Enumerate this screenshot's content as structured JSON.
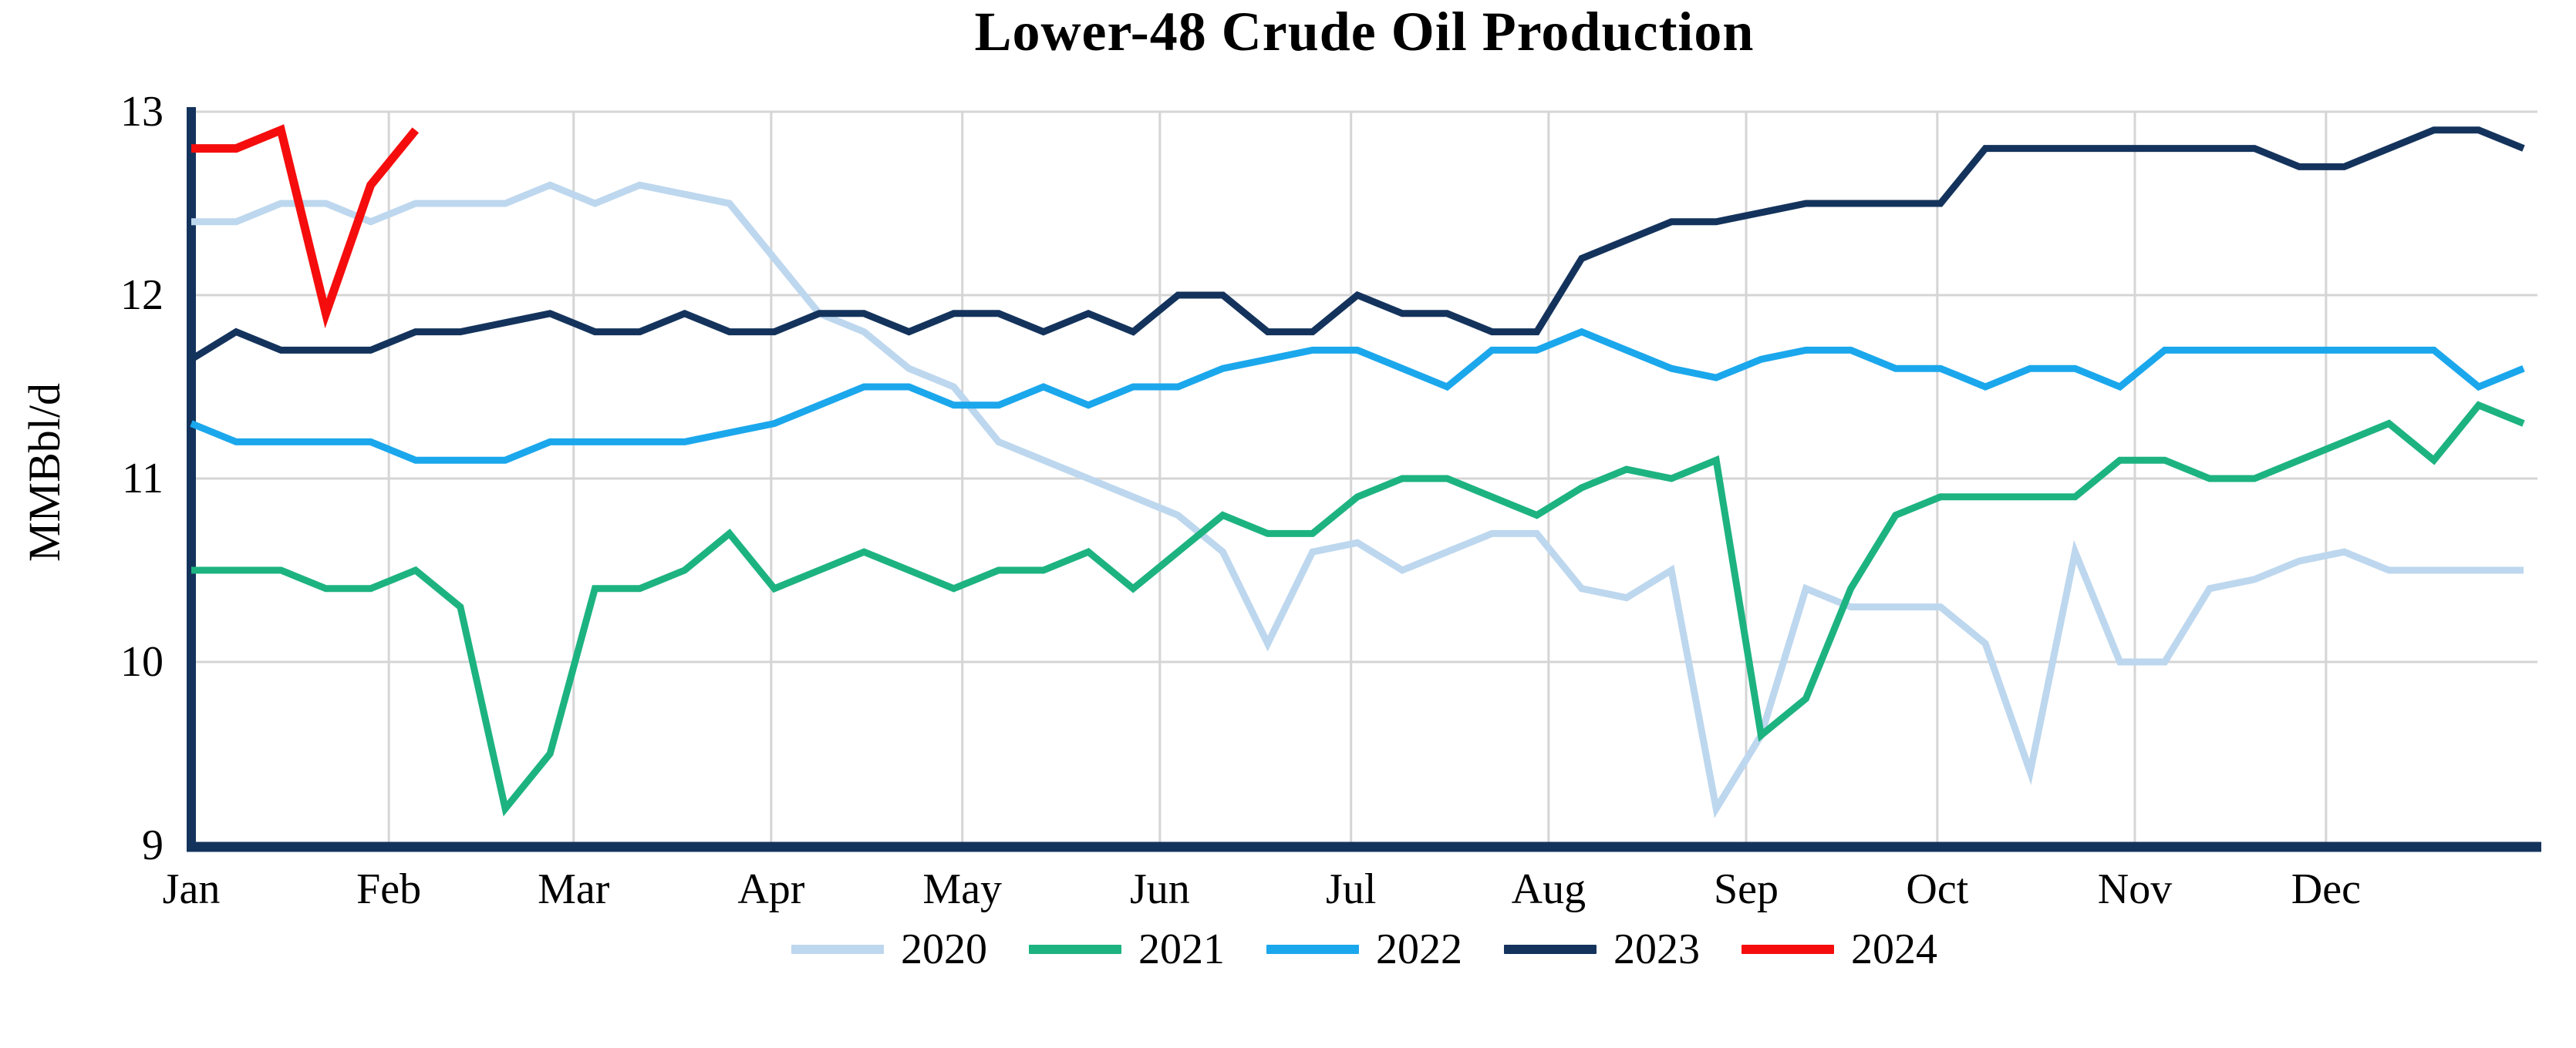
{
  "title": "Lower-48 Crude Oil Production",
  "y_axis": {
    "label": "MMBbl/d",
    "ticks": [
      "13",
      "12",
      "11",
      "10",
      "9"
    ],
    "min": 9,
    "max": 13
  },
  "x_axis": {
    "ticks": [
      "Jan",
      "Feb",
      "Mar",
      "Apr",
      "May",
      "Jun",
      "Jul",
      "Aug",
      "Sep",
      "Oct",
      "Nov",
      "Dec"
    ]
  },
  "colors": {
    "grid": "#D5D5D5",
    "axis": "#14335C",
    "background": "#FFFFFF",
    "title_text": "#000000"
  },
  "chart_data": {
    "type": "line",
    "title": "Lower-48 Crude Oil Production",
    "xlabel": "",
    "ylabel": "MMBbl/d",
    "ylim": [
      9,
      13
    ],
    "grid": true,
    "legend_position": "bottom",
    "x_unit": "weekly points spanning Jan-Dec",
    "categories": [
      "Jan",
      "Feb",
      "Mar",
      "Apr",
      "May",
      "Jun",
      "Jul",
      "Aug",
      "Sep",
      "Oct",
      "Nov",
      "Dec"
    ],
    "series": [
      {
        "name": "2020",
        "color": "#BDD7EE",
        "values": [
          12.4,
          12.4,
          12.5,
          12.5,
          12.4,
          12.5,
          12.5,
          12.5,
          12.6,
          12.5,
          12.6,
          12.55,
          12.5,
          12.2,
          11.9,
          11.8,
          11.6,
          11.5,
          11.2,
          11.1,
          11.0,
          10.9,
          10.8,
          10.6,
          10.1,
          10.6,
          10.65,
          10.5,
          10.6,
          10.7,
          10.7,
          10.4,
          10.35,
          10.5,
          9.2,
          9.6,
          10.4,
          10.3,
          10.3,
          10.3,
          10.1,
          9.4,
          10.6,
          10.0,
          10.0,
          10.4,
          10.45,
          10.55,
          10.6,
          10.5,
          10.5,
          10.5,
          10.5
        ]
      },
      {
        "name": "2021",
        "color": "#1DB380",
        "values": [
          10.5,
          10.5,
          10.5,
          10.4,
          10.4,
          10.5,
          10.3,
          9.2,
          9.5,
          10.4,
          10.4,
          10.5,
          10.7,
          10.4,
          10.5,
          10.6,
          10.5,
          10.4,
          10.5,
          10.5,
          10.6,
          10.4,
          10.6,
          10.8,
          10.7,
          10.7,
          10.9,
          11.0,
          11.0,
          10.9,
          10.8,
          10.95,
          11.05,
          11.0,
          11.1,
          9.6,
          9.8,
          10.4,
          10.8,
          10.9,
          10.9,
          10.9,
          10.9,
          11.1,
          11.1,
          11.0,
          11.0,
          11.1,
          11.2,
          11.3,
          11.1,
          11.4,
          11.3
        ]
      },
      {
        "name": "2022",
        "color": "#1BA7EC",
        "values": [
          11.3,
          11.2,
          11.2,
          11.2,
          11.2,
          11.1,
          11.1,
          11.1,
          11.2,
          11.2,
          11.2,
          11.2,
          11.25,
          11.3,
          11.4,
          11.5,
          11.5,
          11.4,
          11.4,
          11.5,
          11.4,
          11.5,
          11.5,
          11.6,
          11.65,
          11.7,
          11.7,
          11.6,
          11.5,
          11.7,
          11.7,
          11.8,
          11.7,
          11.6,
          11.55,
          11.65,
          11.7,
          11.7,
          11.6,
          11.6,
          11.5,
          11.6,
          11.6,
          11.5,
          11.7,
          11.7,
          11.7,
          11.7,
          11.7,
          11.7,
          11.7,
          11.5,
          11.6
        ]
      },
      {
        "name": "2023",
        "color": "#14335C",
        "values": [
          11.65,
          11.8,
          11.7,
          11.7,
          11.7,
          11.8,
          11.8,
          11.85,
          11.9,
          11.8,
          11.8,
          11.9,
          11.8,
          11.8,
          11.9,
          11.9,
          11.8,
          11.9,
          11.9,
          11.8,
          11.9,
          11.8,
          12.0,
          12.0,
          11.8,
          11.8,
          12.0,
          11.9,
          11.9,
          11.8,
          11.8,
          12.2,
          12.3,
          12.4,
          12.4,
          12.45,
          12.5,
          12.5,
          12.5,
          12.5,
          12.8,
          12.8,
          12.8,
          12.8,
          12.8,
          12.8,
          12.8,
          12.7,
          12.7,
          12.8,
          12.9,
          12.9,
          12.8
        ]
      },
      {
        "name": "2024",
        "color": "#F50D0D",
        "values": [
          12.8,
          12.8,
          12.9,
          11.9,
          12.6,
          12.9
        ]
      }
    ]
  },
  "legend": [
    {
      "label": "2020",
      "color": "#BDD7EE"
    },
    {
      "label": "2021",
      "color": "#1DB380"
    },
    {
      "label": "2022",
      "color": "#1BA7EC"
    },
    {
      "label": "2023",
      "color": "#14335C"
    },
    {
      "label": "2024",
      "color": "#F50D0D"
    }
  ]
}
